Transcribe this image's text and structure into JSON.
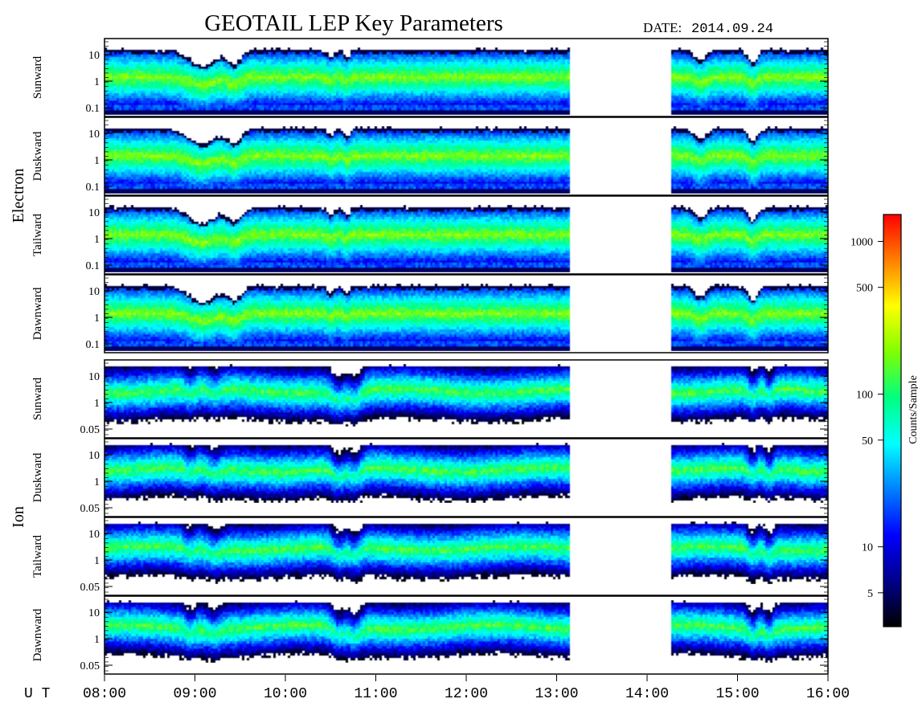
{
  "header": {
    "title": "GEOTAIL LEP Key Parameters",
    "date_label": "DATE:",
    "date_value": "2014.09.24"
  },
  "time_axis": {
    "prefix": "U T",
    "ticks": [
      "08:00",
      "09:00",
      "10:00",
      "11:00",
      "12:00",
      "13:00",
      "14:00",
      "15:00",
      "16:00"
    ]
  },
  "data_gap": {
    "start": "13:10",
    "end": "14:15"
  },
  "groups": [
    {
      "label": "Electron",
      "y_ticks": [
        "10",
        "1",
        "0.1"
      ],
      "y_scale": "log"
    },
    {
      "label": "Ion",
      "y_ticks": [
        "10",
        "1",
        "0.05"
      ],
      "y_scale": "log"
    }
  ],
  "panels": [
    {
      "group": "Electron",
      "direction": "Sunward"
    },
    {
      "group": "Electron",
      "direction": "Duskward"
    },
    {
      "group": "Electron",
      "direction": "Tailward"
    },
    {
      "group": "Electron",
      "direction": "Dawnward"
    },
    {
      "group": "Ion",
      "direction": "Sunward"
    },
    {
      "group": "Ion",
      "direction": "Duskward"
    },
    {
      "group": "Ion",
      "direction": "Tailward"
    },
    {
      "group": "Ion",
      "direction": "Dawnward"
    }
  ],
  "colorbar": {
    "label": "Counts/Sample",
    "scale": "log",
    "range": [
      3,
      1500
    ],
    "ticks": [
      "1000",
      "500",
      "100",
      "50",
      "10",
      "5"
    ],
    "colors": [
      "#000000",
      "#00008b",
      "#0000ff",
      "#0080ff",
      "#00ffff",
      "#00ff80",
      "#80ff00",
      "#ffff00",
      "#ff8000",
      "#ff0000"
    ]
  },
  "chart_data": {
    "type": "heatmap",
    "title": "GEOTAIL LEP Key Parameters",
    "xlabel": "U T",
    "x_range": [
      "08:00",
      "16:00"
    ],
    "x_ticks": [
      "08:00",
      "09:00",
      "10:00",
      "11:00",
      "12:00",
      "13:00",
      "14:00",
      "15:00",
      "16:00"
    ],
    "series": [
      {
        "name": "Electron Sunward",
        "y_ticks": [
          "10",
          "1",
          "0.1"
        ]
      },
      {
        "name": "Electron Duskward",
        "y_ticks": [
          "10",
          "1",
          "0.1"
        ]
      },
      {
        "name": "Electron Tailward",
        "y_ticks": [
          "10",
          "1",
          "0.1"
        ]
      },
      {
        "name": "Electron Dawnward",
        "y_ticks": [
          "10",
          "1",
          "0.1"
        ]
      },
      {
        "name": "Ion Sunward",
        "y_ticks": [
          "10",
          "1",
          "0.05"
        ]
      },
      {
        "name": "Ion Duskward",
        "y_ticks": [
          "10",
          "1",
          "0.05"
        ]
      },
      {
        "name": "Ion Tailward",
        "y_ticks": [
          "10",
          "1",
          "0.05"
        ]
      },
      {
        "name": "Ion Dawnward",
        "y_ticks": [
          "10",
          "1",
          "0.05"
        ]
      }
    ],
    "colorbar_label": "Counts/Sample",
    "colorbar_ticks": [
      1000,
      500,
      100,
      50,
      10,
      5
    ]
  }
}
